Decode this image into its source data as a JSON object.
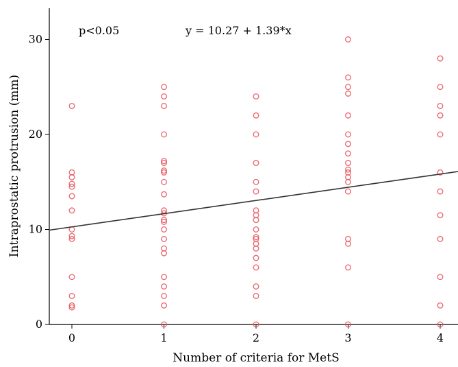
{
  "chart_data": {
    "type": "scatter",
    "title": "",
    "xlabel": "Number of criteria for MetS",
    "ylabel": "Intraprostatic protrusion (mm)",
    "xlim": [
      -0.25,
      4.25
    ],
    "ylim": [
      0,
      31.5
    ],
    "xticks": [
      0,
      1,
      2,
      3,
      4
    ],
    "yticks": [
      0,
      10,
      20,
      30
    ],
    "grid": false,
    "point_color": "#e8545c",
    "line_color": "#333333",
    "annotations": {
      "p_value": "p<0.05",
      "equation": "y = 10.27 + 1.39*x"
    },
    "regression": {
      "intercept": 10.27,
      "slope": 1.39
    },
    "points": [
      {
        "x": 0,
        "y": 23
      },
      {
        "x": 0,
        "y": 16
      },
      {
        "x": 0,
        "y": 15.5
      },
      {
        "x": 0,
        "y": 14.8
      },
      {
        "x": 0,
        "y": 14.5
      },
      {
        "x": 0,
        "y": 13.5
      },
      {
        "x": 0,
        "y": 12
      },
      {
        "x": 0,
        "y": 10
      },
      {
        "x": 0,
        "y": 9.3
      },
      {
        "x": 0,
        "y": 9
      },
      {
        "x": 0,
        "y": 5
      },
      {
        "x": 0,
        "y": 3
      },
      {
        "x": 0,
        "y": 2
      },
      {
        "x": 0,
        "y": 1.8
      },
      {
        "x": 1,
        "y": 25
      },
      {
        "x": 1,
        "y": 24
      },
      {
        "x": 1,
        "y": 23
      },
      {
        "x": 1,
        "y": 20
      },
      {
        "x": 1,
        "y": 17.2
      },
      {
        "x": 1,
        "y": 17
      },
      {
        "x": 1,
        "y": 16.2
      },
      {
        "x": 1,
        "y": 16
      },
      {
        "x": 1,
        "y": 15
      },
      {
        "x": 1,
        "y": 13.7
      },
      {
        "x": 1,
        "y": 12
      },
      {
        "x": 1,
        "y": 11.7
      },
      {
        "x": 1,
        "y": 11
      },
      {
        "x": 1,
        "y": 10.8
      },
      {
        "x": 1,
        "y": 10
      },
      {
        "x": 1,
        "y": 9
      },
      {
        "x": 1,
        "y": 8
      },
      {
        "x": 1,
        "y": 7.5
      },
      {
        "x": 1,
        "y": 5
      },
      {
        "x": 1,
        "y": 4
      },
      {
        "x": 1,
        "y": 3
      },
      {
        "x": 1,
        "y": 2
      },
      {
        "x": 1,
        "y": 0
      },
      {
        "x": 2,
        "y": 24
      },
      {
        "x": 2,
        "y": 22
      },
      {
        "x": 2,
        "y": 20
      },
      {
        "x": 2,
        "y": 17
      },
      {
        "x": 2,
        "y": 15
      },
      {
        "x": 2,
        "y": 14
      },
      {
        "x": 2,
        "y": 12
      },
      {
        "x": 2,
        "y": 11.5
      },
      {
        "x": 2,
        "y": 11
      },
      {
        "x": 2,
        "y": 10
      },
      {
        "x": 2,
        "y": 9.2
      },
      {
        "x": 2,
        "y": 9
      },
      {
        "x": 2,
        "y": 8.5
      },
      {
        "x": 2,
        "y": 8
      },
      {
        "x": 2,
        "y": 7
      },
      {
        "x": 2,
        "y": 6
      },
      {
        "x": 2,
        "y": 4
      },
      {
        "x": 2,
        "y": 3
      },
      {
        "x": 2,
        "y": 0
      },
      {
        "x": 3,
        "y": 30
      },
      {
        "x": 3,
        "y": 26
      },
      {
        "x": 3,
        "y": 25
      },
      {
        "x": 3,
        "y": 24.3
      },
      {
        "x": 3,
        "y": 22
      },
      {
        "x": 3,
        "y": 20
      },
      {
        "x": 3,
        "y": 19
      },
      {
        "x": 3,
        "y": 18
      },
      {
        "x": 3,
        "y": 17
      },
      {
        "x": 3,
        "y": 16.3
      },
      {
        "x": 3,
        "y": 16
      },
      {
        "x": 3,
        "y": 15.5
      },
      {
        "x": 3,
        "y": 15
      },
      {
        "x": 3,
        "y": 14
      },
      {
        "x": 3,
        "y": 9
      },
      {
        "x": 3,
        "y": 8.5
      },
      {
        "x": 3,
        "y": 6
      },
      {
        "x": 3,
        "y": 0
      },
      {
        "x": 4,
        "y": 28
      },
      {
        "x": 4,
        "y": 25
      },
      {
        "x": 4,
        "y": 23
      },
      {
        "x": 4,
        "y": 22
      },
      {
        "x": 4,
        "y": 20
      },
      {
        "x": 4,
        "y": 16
      },
      {
        "x": 4,
        "y": 14
      },
      {
        "x": 4,
        "y": 11.5
      },
      {
        "x": 4,
        "y": 9
      },
      {
        "x": 4,
        "y": 5
      },
      {
        "x": 4,
        "y": 2
      },
      {
        "x": 4,
        "y": 0
      }
    ]
  }
}
